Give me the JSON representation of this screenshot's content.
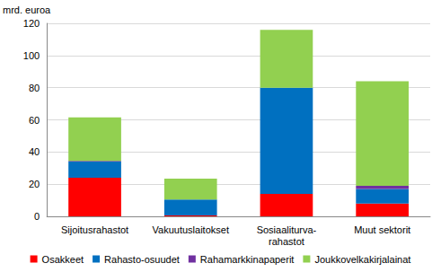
{
  "chart_data": {
    "type": "bar",
    "stacked": true,
    "grid": true,
    "legend": "bottom",
    "y_label": "mrd. euroa",
    "categories": [
      "Sijoitusrahastot",
      "Vakuutuslaitokset",
      "Sosiaaliturva-\nrahastot",
      "Muut sektorit"
    ],
    "series": [
      {
        "name": "Osakkeet",
        "color": "#ff0000",
        "values": [
          24,
          0.5,
          14,
          8
        ]
      },
      {
        "name": "Rahasto-osuudet",
        "color": "#0070c0",
        "values": [
          10,
          10,
          66,
          9
        ]
      },
      {
        "name": "Rahamarkkinapaperit",
        "color": "#7030a0",
        "values": [
          0.5,
          0,
          0,
          2
        ]
      },
      {
        "name": "Joukkovelkakirjalainat",
        "color": "#92d050",
        "values": [
          27,
          13,
          36,
          65
        ]
      }
    ],
    "ylim": [
      0,
      120
    ],
    "yticks": [
      0,
      20,
      40,
      60,
      80,
      100,
      120
    ]
  }
}
